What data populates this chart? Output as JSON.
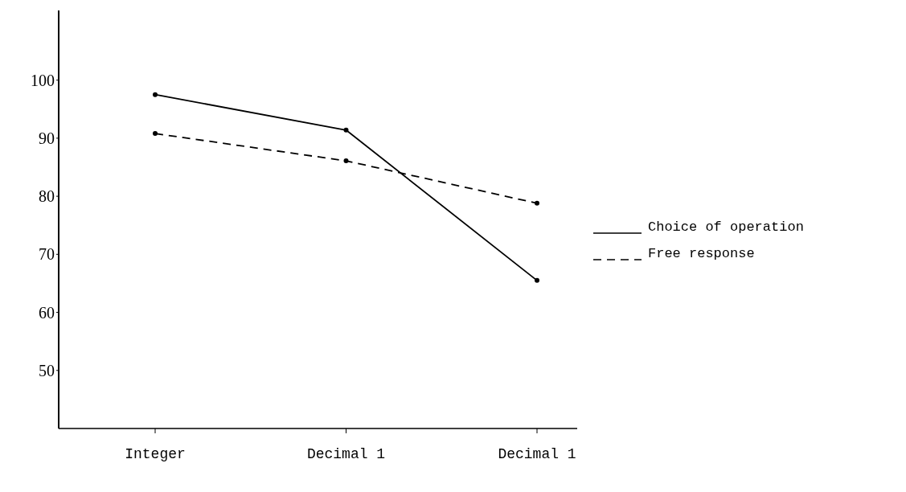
{
  "chart_data": {
    "type": "line",
    "categories": [
      "Integer",
      "Decimal 1",
      "Decimal 1"
    ],
    "series": [
      {
        "name": "Choice of operation",
        "color": "#000000",
        "values": [
          97.5,
          91.4,
          65.5
        ],
        "line_style": "solid"
      },
      {
        "name": "Free response",
        "color": "#000000",
        "values": [
          90.8,
          86.1,
          78.8
        ],
        "line_style": "dashed"
      }
    ],
    "ylim": [
      40,
      112
    ],
    "yticks": [
      50,
      60,
      70,
      80,
      90,
      100
    ],
    "grid": false,
    "legend": "right",
    "marker": "circle"
  }
}
